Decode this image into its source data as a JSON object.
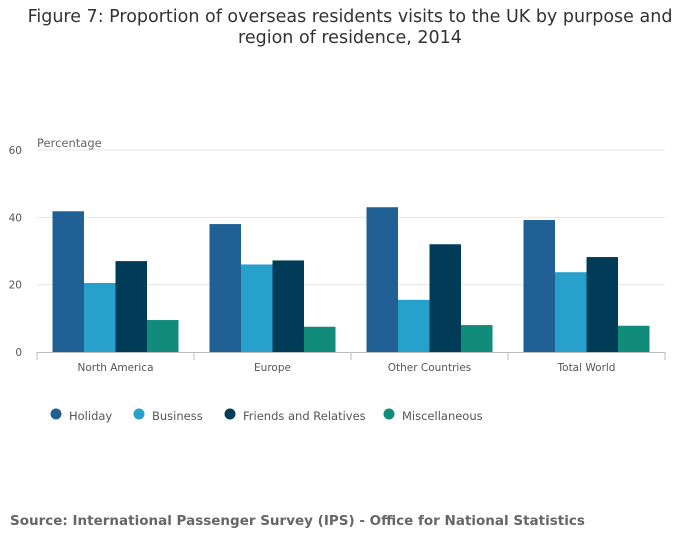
{
  "title": "Figure 7: Proportion of overseas residents visits to the UK by purpose and region of residence, 2014",
  "source": "Source: International Passenger Survey (IPS) - Office for National Statistics",
  "chart_data": {
    "type": "bar",
    "title": "Figure 7: Proportion of overseas residents visits to the UK by purpose and region of residence, 2014",
    "ylabel": "Percentage",
    "xlabel": "",
    "ylim": [
      0,
      60
    ],
    "yticks": [
      0,
      20,
      40,
      60
    ],
    "grid": true,
    "legend_position": "bottom-left",
    "categories": [
      "North America",
      "Europe",
      "Other Countries",
      "Total World"
    ],
    "series": [
      {
        "name": "Holiday",
        "color": "#206095",
        "values": [
          41.8,
          38.0,
          43.0,
          39.2
        ]
      },
      {
        "name": "Business",
        "color": "#27a0cc",
        "values": [
          20.5,
          26.0,
          15.5,
          23.7
        ]
      },
      {
        "name": "Friends and Relatives",
        "color": "#003c57",
        "values": [
          27.0,
          27.2,
          32.0,
          28.2
        ]
      },
      {
        "name": "Miscellaneous",
        "color": "#118c7b",
        "values": [
          9.5,
          7.5,
          8.0,
          7.8
        ]
      }
    ]
  }
}
